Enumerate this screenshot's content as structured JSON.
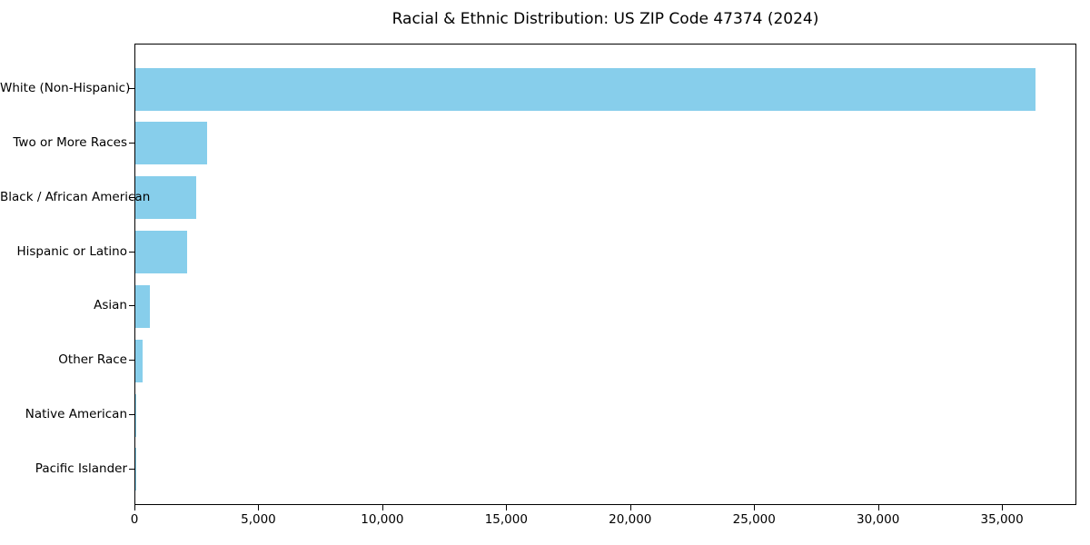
{
  "chart_data": {
    "type": "bar",
    "orientation": "horizontal",
    "title": "Racial & Ethnic Distribution: US ZIP Code 47374 (2024)",
    "categories": [
      "White (Non-Hispanic)",
      "Two or More Races",
      "Black / African American",
      "Hispanic or Latino",
      "Asian",
      "Other Race",
      "Native American",
      "Pacific Islander"
    ],
    "values": [
      36300,
      2900,
      2450,
      2100,
      600,
      280,
      40,
      10
    ],
    "xlabel": "",
    "ylabel": "",
    "xlim": [
      0,
      38000
    ],
    "xticks": [
      0,
      5000,
      10000,
      15000,
      20000,
      25000,
      30000,
      35000
    ],
    "xtick_labels": [
      "0",
      "5,000",
      "10,000",
      "15,000",
      "20,000",
      "25,000",
      "30,000",
      "35,000"
    ],
    "bar_color": "#87CEEB",
    "frame_color": "#000000",
    "background": "#FFFFFF",
    "grid": false,
    "legend": null
  }
}
